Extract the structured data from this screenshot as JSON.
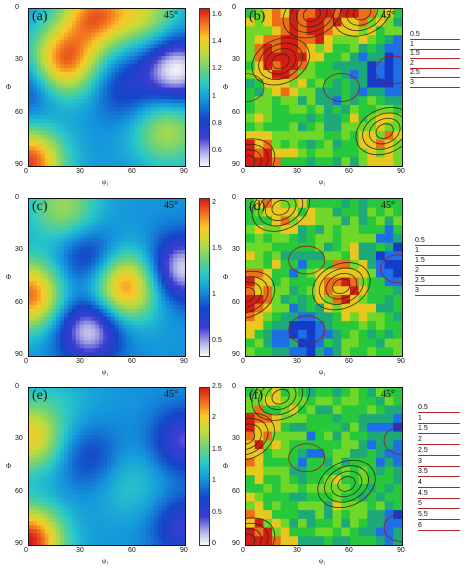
{
  "chart_data": [
    {
      "type": "heatmap",
      "panel": "(a)",
      "angle": "45°",
      "xlabel": "φ₁",
      "ylabel": "Φ",
      "x_ticks": [
        "0",
        "30",
        "60",
        "90"
      ],
      "y_ticks": [
        "0",
        "30",
        "60",
        "90"
      ],
      "xlim": [
        0,
        90
      ],
      "ylim": [
        0,
        90
      ],
      "colorbar_ticks": [
        "1.6",
        "1.4",
        "1.2",
        "1",
        "0.8",
        "0.6"
      ],
      "colorbar_range": [
        0.5,
        1.65
      ],
      "peaks": [
        {
          "x": 20,
          "y": 30,
          "value": 1.55
        },
        {
          "x": 0,
          "y": 88,
          "value": 1.6
        },
        {
          "x": 38,
          "y": 3,
          "value": 1.5
        },
        {
          "x": 67,
          "y": 2,
          "value": 1.3
        },
        {
          "x": 80,
          "y": 70,
          "value": 1.3
        }
      ],
      "valleys": [
        {
          "x": 85,
          "y": 35,
          "value": 0.5
        },
        {
          "x": 0,
          "y": 45,
          "value": 0.8
        },
        {
          "x": 55,
          "y": 45,
          "value": 0.8
        }
      ]
    },
    {
      "type": "heatmap",
      "panel": "(b)",
      "angle": "45°",
      "xlabel": "φ₁",
      "ylabel": "Φ",
      "x_ticks": [
        "0",
        "30",
        "60",
        "90"
      ],
      "y_ticks": [
        "0",
        "30",
        "60",
        "90"
      ],
      "xlim": [
        0,
        90
      ],
      "ylim": [
        0,
        90
      ],
      "contour_levels": [
        "0.5",
        "1",
        "1.5",
        "2",
        "2.5",
        "3"
      ]
    },
    {
      "type": "heatmap",
      "panel": "(c)",
      "angle": "45°",
      "xlabel": "φ₁",
      "ylabel": "Φ",
      "x_ticks": [
        "0",
        "30",
        "60",
        "90"
      ],
      "y_ticks": [
        "0",
        "30",
        "60",
        "90"
      ],
      "xlim": [
        0,
        90
      ],
      "ylim": [
        0,
        90
      ],
      "colorbar_ticks": [
        "2",
        "1.5",
        "1",
        "0.5"
      ],
      "colorbar_range": [
        0.35,
        2.05
      ],
      "peaks": [
        {
          "x": 0,
          "y": 55,
          "value": 1.9
        },
        {
          "x": 55,
          "y": 50,
          "value": 1.9
        },
        {
          "x": 20,
          "y": 5,
          "value": 1.5
        }
      ],
      "valleys": [
        {
          "x": 35,
          "y": 75,
          "value": 0.4
        },
        {
          "x": 88,
          "y": 40,
          "value": 0.4
        },
        {
          "x": 35,
          "y": 35,
          "value": 0.7
        }
      ]
    },
    {
      "type": "heatmap",
      "panel": "(d)",
      "angle": "45°",
      "xlabel": "φ₁",
      "ylabel": "Φ",
      "x_ticks": [
        "0",
        "30",
        "60",
        "90"
      ],
      "y_ticks": [
        "0",
        "30",
        "60",
        "90"
      ],
      "xlim": [
        0,
        90
      ],
      "ylim": [
        0,
        90
      ],
      "contour_levels": [
        "0.5",
        "1",
        "1.5",
        "2",
        "2.5",
        "3"
      ]
    },
    {
      "type": "heatmap",
      "panel": "(e)",
      "angle": "45°",
      "xlabel": "φ₁",
      "ylabel": "Φ",
      "x_ticks": [
        "0",
        "30",
        "60",
        "90"
      ],
      "y_ticks": [
        "0",
        "30",
        "60",
        "90"
      ],
      "xlim": [
        0,
        90
      ],
      "ylim": [
        0,
        90
      ],
      "colorbar_ticks": [
        "2.5",
        "2",
        "1.5",
        "1",
        "0.5",
        "0"
      ],
      "colorbar_range": [
        0,
        2.5
      ],
      "peaks": [
        {
          "x": 0,
          "y": 88,
          "value": 2.5
        },
        {
          "x": 0,
          "y": 28,
          "value": 2.0
        },
        {
          "x": 58,
          "y": 55,
          "value": 1.3
        },
        {
          "x": 20,
          "y": 5,
          "value": 1.2
        }
      ],
      "valleys": [
        {
          "x": 90,
          "y": 30,
          "value": 0.4
        },
        {
          "x": 90,
          "y": 80,
          "value": 0.5
        },
        {
          "x": 35,
          "y": 40,
          "value": 0.7
        }
      ]
    },
    {
      "type": "heatmap",
      "panel": "(f)",
      "angle": "45°",
      "xlabel": "φ₁",
      "ylabel": "Φ",
      "x_ticks": [
        "0",
        "30",
        "60",
        "90"
      ],
      "y_ticks": [
        "0",
        "30",
        "60",
        "90"
      ],
      "xlim": [
        0,
        90
      ],
      "ylim": [
        0,
        90
      ],
      "contour_levels": [
        "0.5",
        "1",
        "1.5",
        "2",
        "2.5",
        "3",
        "3.5",
        "4",
        "4.5",
        "5",
        "5.5",
        "6"
      ]
    }
  ]
}
